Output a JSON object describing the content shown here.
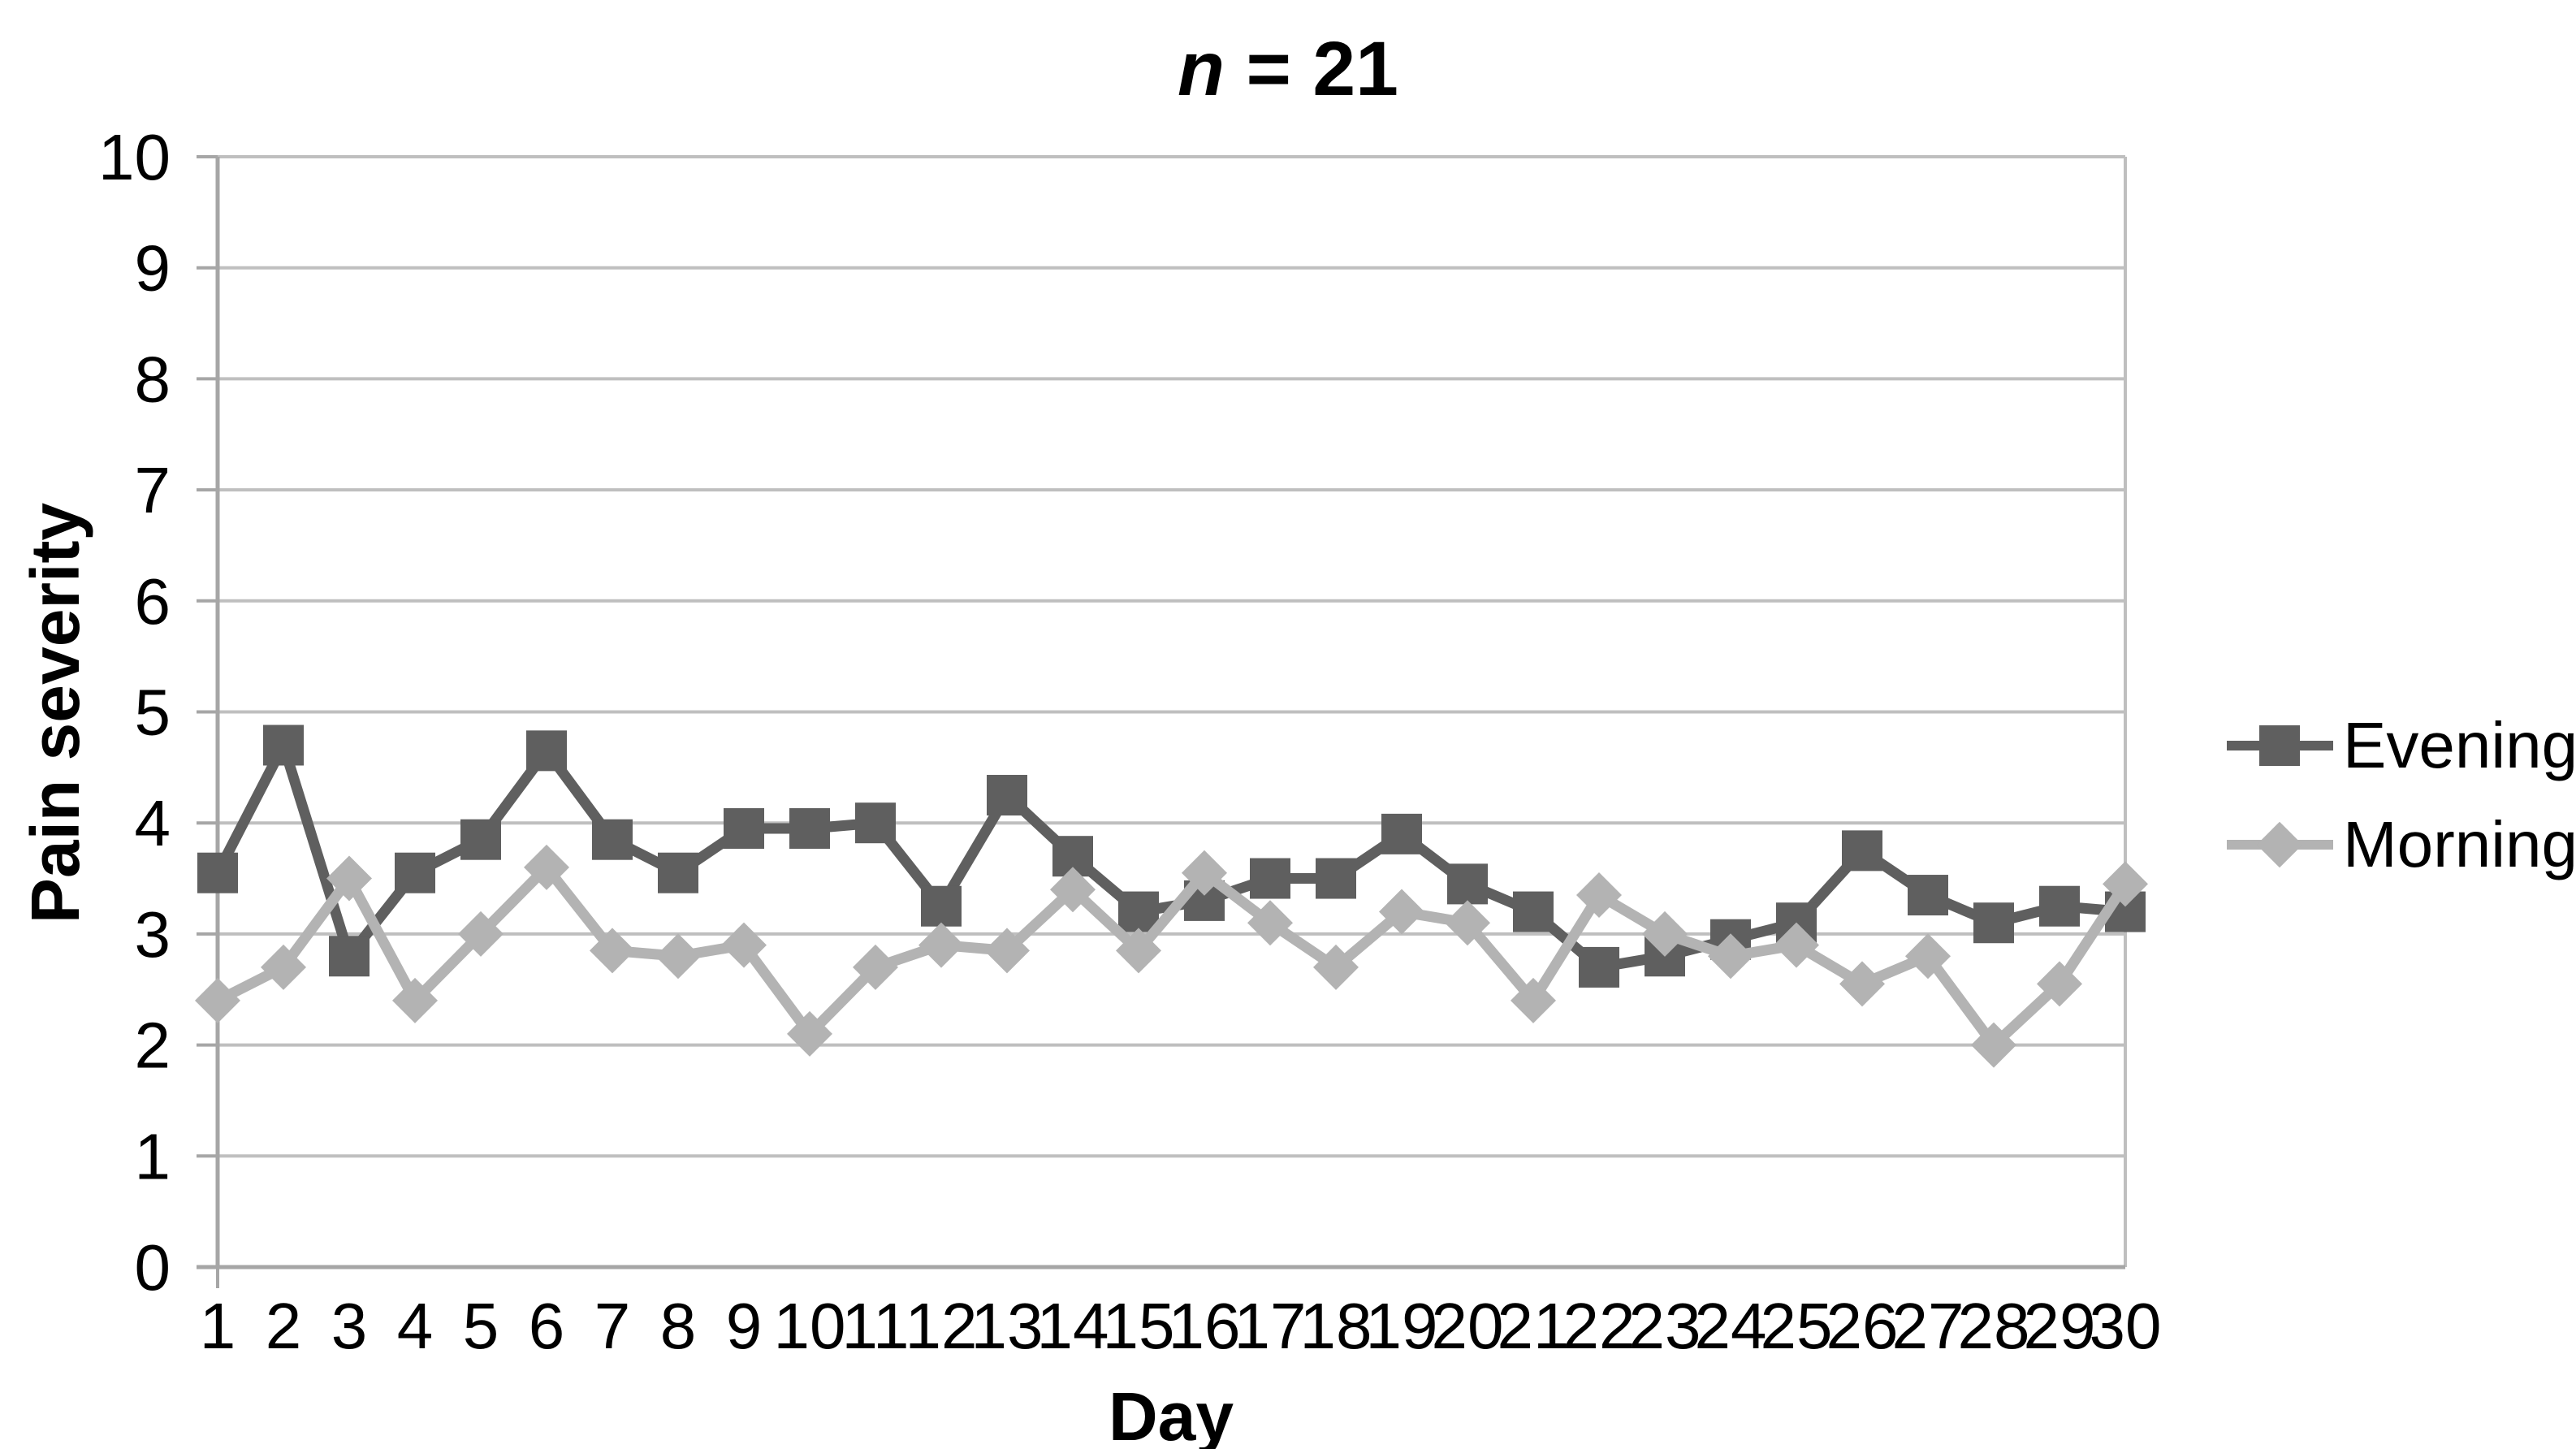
{
  "title": {
    "italic_part": "n",
    "rest": " = 21"
  },
  "y_axis": {
    "label": "Pain severity",
    "tick_labels": [
      "0",
      "1",
      "2",
      "3",
      "4",
      "5",
      "6",
      "7",
      "8",
      "9",
      "10"
    ]
  },
  "x_axis": {
    "label": "Day",
    "tick_labels": [
      "1",
      "2",
      "3",
      "4",
      "5",
      "6",
      "7",
      "8",
      "9",
      "10",
      "11",
      "12",
      "13",
      "14",
      "15",
      "16",
      "17",
      "18",
      "19",
      "20",
      "21",
      "22",
      "23",
      "24",
      "25",
      "26",
      "27",
      "28",
      "29",
      "30"
    ]
  },
  "legend": {
    "evening_label": "Evening",
    "morning_label": "Morning"
  },
  "colors": {
    "evening": "#5f5f5f",
    "morning": "#b3b3b3",
    "gridline": "#bfbfbf",
    "axis": "#a6a6a6",
    "text": "#000000",
    "background": "#ffffff"
  },
  "chart_data": {
    "type": "line",
    "title": "n = 21",
    "xlabel": "Day",
    "ylabel": "Pain severity",
    "ylim": [
      0,
      10
    ],
    "y_tick_step": 1,
    "grid": "horizontal",
    "legend_position": "right",
    "x": [
      1,
      2,
      3,
      4,
      5,
      6,
      7,
      8,
      9,
      10,
      11,
      12,
      13,
      14,
      15,
      16,
      17,
      18,
      19,
      20,
      21,
      22,
      23,
      24,
      25,
      26,
      27,
      28,
      29,
      30
    ],
    "series": [
      {
        "name": "Evening",
        "marker": "square",
        "color": "#5f5f5f",
        "values": [
          3.55,
          4.7,
          2.8,
          3.55,
          3.85,
          4.65,
          3.85,
          3.55,
          3.95,
          3.95,
          4.0,
          3.25,
          4.25,
          3.7,
          3.2,
          3.3,
          3.5,
          3.5,
          3.9,
          3.45,
          3.2,
          2.7,
          2.8,
          2.95,
          3.1,
          3.75,
          3.35,
          3.1,
          3.25,
          3.2
        ]
      },
      {
        "name": "Morning",
        "marker": "diamond",
        "color": "#b3b3b3",
        "values": [
          2.4,
          2.7,
          3.5,
          2.4,
          3.0,
          3.6,
          2.85,
          2.8,
          2.9,
          2.1,
          2.7,
          2.9,
          2.85,
          3.4,
          2.85,
          3.55,
          3.1,
          2.7,
          3.2,
          3.1,
          2.4,
          3.35,
          3.0,
          2.8,
          2.9,
          2.55,
          2.8,
          2.0,
          2.55,
          3.45
        ]
      }
    ]
  }
}
